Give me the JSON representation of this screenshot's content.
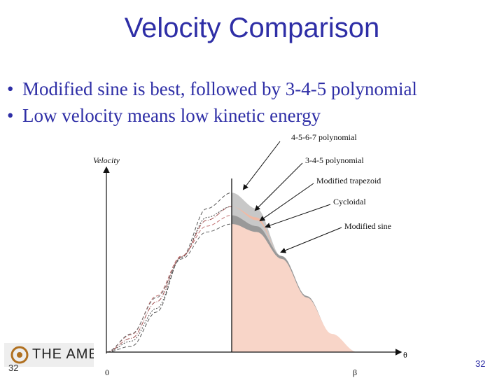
{
  "slide": {
    "title": "Velocity Comparison",
    "bullets": [
      "Modified sine is best, followed by 3-4-5 polynomial",
      "Low velocity means low kinetic energy"
    ],
    "bullet_symbol": "•",
    "slide_number_left": "32",
    "slide_number_right": "32",
    "logo_text": "THE AMER",
    "colors": {
      "text": "#2e2ea6",
      "fill": "#f8d5c8",
      "gray_band": "#c8c8c8",
      "dark_band": "#999999"
    }
  },
  "chart_data": {
    "type": "line",
    "ylabel": "Velocity",
    "xlabel": "θ",
    "x_tick_start": "0",
    "x_tick_end": "β",
    "xlim": [
      0,
      1
    ],
    "series": [
      {
        "name": "4-5-6-7 polynomial",
        "style": "dashed",
        "peak": 2.19,
        "x": [
          0,
          0.1,
          0.2,
          0.3,
          0.4,
          0.5,
          0.6,
          0.7,
          0.8,
          0.9,
          1.0
        ],
        "y": [
          0,
          0.08,
          0.55,
          1.31,
          1.97,
          2.19,
          1.97,
          1.31,
          0.55,
          0.08,
          0
        ]
      },
      {
        "name": "3-4-5 polynomial",
        "style": "dashed",
        "peak": 1.88,
        "x": [
          0,
          0.1,
          0.2,
          0.3,
          0.4,
          0.5,
          0.6,
          0.7,
          0.8,
          0.9,
          1.0
        ],
        "y": [
          0,
          0.24,
          0.77,
          1.32,
          1.73,
          1.88,
          1.73,
          1.32,
          0.77,
          0.24,
          0
        ]
      },
      {
        "name": "Modified trapezoid",
        "style": "dotted",
        "peak": 2.0,
        "x": [
          0,
          0.1,
          0.2,
          0.3,
          0.4,
          0.5,
          0.6,
          0.7,
          0.8,
          0.9,
          1.0
        ],
        "y": [
          0,
          0.15,
          0.6,
          1.3,
          1.85,
          2.0,
          1.85,
          1.3,
          0.6,
          0.15,
          0
        ]
      },
      {
        "name": "Cycloidal",
        "style": "dash-dot",
        "peak": 2.0,
        "x": [
          0,
          0.1,
          0.2,
          0.3,
          0.4,
          0.5,
          0.6,
          0.7,
          0.8,
          0.9,
          1.0
        ],
        "y": [
          0,
          0.19,
          0.69,
          1.31,
          1.81,
          2.0,
          1.81,
          1.31,
          0.69,
          0.19,
          0
        ]
      },
      {
        "name": "Modified sine",
        "style": "dashed",
        "peak": 1.76,
        "x": [
          0,
          0.1,
          0.2,
          0.3,
          0.4,
          0.5,
          0.6,
          0.7,
          0.8,
          0.9,
          1.0
        ],
        "y": [
          0,
          0.25,
          0.75,
          1.28,
          1.65,
          1.76,
          1.65,
          1.28,
          0.75,
          0.25,
          0
        ]
      }
    ]
  }
}
